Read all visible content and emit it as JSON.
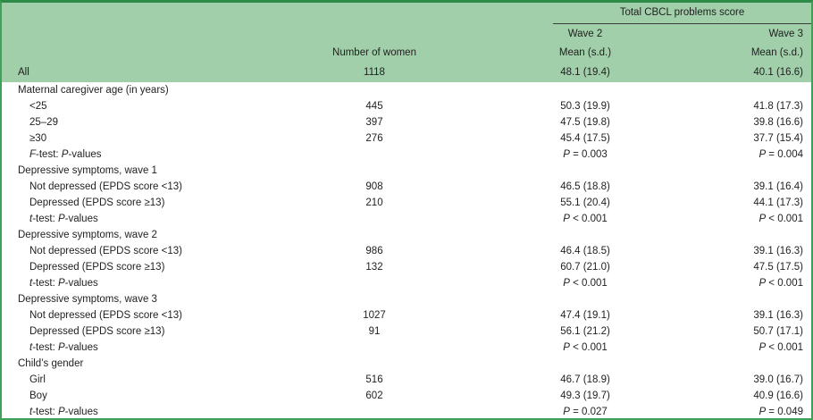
{
  "table": {
    "colors": {
      "header_bg": "#a1cfaa",
      "outer_border": "#3fa057",
      "top_border": "#2e8b47",
      "span_rule": "#3c3c3c",
      "text": "#1f1f1f"
    },
    "header": {
      "span_title": "Total CBCL problems score",
      "women_label": "Number of women",
      "wave2_label": "Wave 2",
      "wave3_label": "Wave 3",
      "wave2_sub": "Mean (s.d.)",
      "wave3_sub": "Mean (s.d.)",
      "all_label": "All",
      "all_n": "1118",
      "all_wave2": "48.1 (19.4)",
      "all_wave3": "40.1 (16.6)"
    },
    "rows": [
      {
        "label": "Maternal caregiver age (in years)",
        "indent": 0,
        "n": "",
        "wave2": "",
        "wave3": ""
      },
      {
        "label": "<25",
        "indent": 1,
        "n": "445",
        "wave2": "50.3 (19.9)",
        "wave3": "41.8 (17.3)"
      },
      {
        "label": "25–29",
        "indent": 1,
        "n": "397",
        "wave2": "47.5 (19.8)",
        "wave3": "39.8 (16.6)"
      },
      {
        "label": "≥30",
        "indent": 1,
        "n": "276",
        "wave2": "45.4 (17.5)",
        "wave3": "37.7 (15.4)"
      },
      {
        "label": "*F*-test: *P*-values",
        "indent": 1,
        "n": "",
        "wave2": "*P* = 0.003",
        "wave3": "*P* = 0.004"
      },
      {
        "label": "Depressive symptoms, wave 1",
        "indent": 0,
        "n": "",
        "wave2": "",
        "wave3": ""
      },
      {
        "label": "Not depressed (EPDS score <13)",
        "indent": 1,
        "n": "908",
        "wave2": "46.5 (18.8)",
        "wave3": "39.1 (16.4)"
      },
      {
        "label": "Depressed (EPDS score ≥13)",
        "indent": 1,
        "n": "210",
        "wave2": "55.1 (20.4)",
        "wave3": "44.1 (17.3)"
      },
      {
        "label": "*t*-test: *P*-values",
        "indent": 1,
        "n": "",
        "wave2": "*P* < 0.001",
        "wave3": "*P* < 0.001"
      },
      {
        "label": "Depressive symptoms, wave 2",
        "indent": 0,
        "n": "",
        "wave2": "",
        "wave3": ""
      },
      {
        "label": "Not depressed (EPDS score <13)",
        "indent": 1,
        "n": "986",
        "wave2": "46.4 (18.5)",
        "wave3": "39.1 (16.3)"
      },
      {
        "label": "Depressed (EPDS score ≥13)",
        "indent": 1,
        "n": "132",
        "wave2": "60.7 (21.0)",
        "wave3": "47.5 (17.5)"
      },
      {
        "label": "*t*-test: *P*-values",
        "indent": 1,
        "n": "",
        "wave2": "*P* < 0.001",
        "wave3": "*P* < 0.001"
      },
      {
        "label": "Depressive symptoms, wave 3",
        "indent": 0,
        "n": "",
        "wave2": "",
        "wave3": ""
      },
      {
        "label": "Not depressed (EPDS score <13)",
        "indent": 1,
        "n": "1027",
        "wave2": "47.4 (19.1)",
        "wave3": "39.1 (16.3)"
      },
      {
        "label": "Depressed (EPDS score ≥13)",
        "indent": 1,
        "n": "91",
        "wave2": "56.1 (21.2)",
        "wave3": "50.7 (17.1)"
      },
      {
        "label": "*t*-test: *P*-values",
        "indent": 1,
        "n": "",
        "wave2": "*P* < 0.001",
        "wave3": "*P* < 0.001"
      },
      {
        "label": "Child’s gender",
        "indent": 0,
        "n": "",
        "wave2": "",
        "wave3": ""
      },
      {
        "label": "Girl",
        "indent": 1,
        "n": "516",
        "wave2": "46.7 (18.9)",
        "wave3": "39.0 (16.7)"
      },
      {
        "label": "Boy",
        "indent": 1,
        "n": "602",
        "wave2": "49.3 (19.7)",
        "wave3": "40.9 (16.6)"
      },
      {
        "label": "*t*-test: *P*-values",
        "indent": 1,
        "n": "",
        "wave2": "*P* = 0.027",
        "wave3": "*P* = 0.049"
      }
    ]
  }
}
